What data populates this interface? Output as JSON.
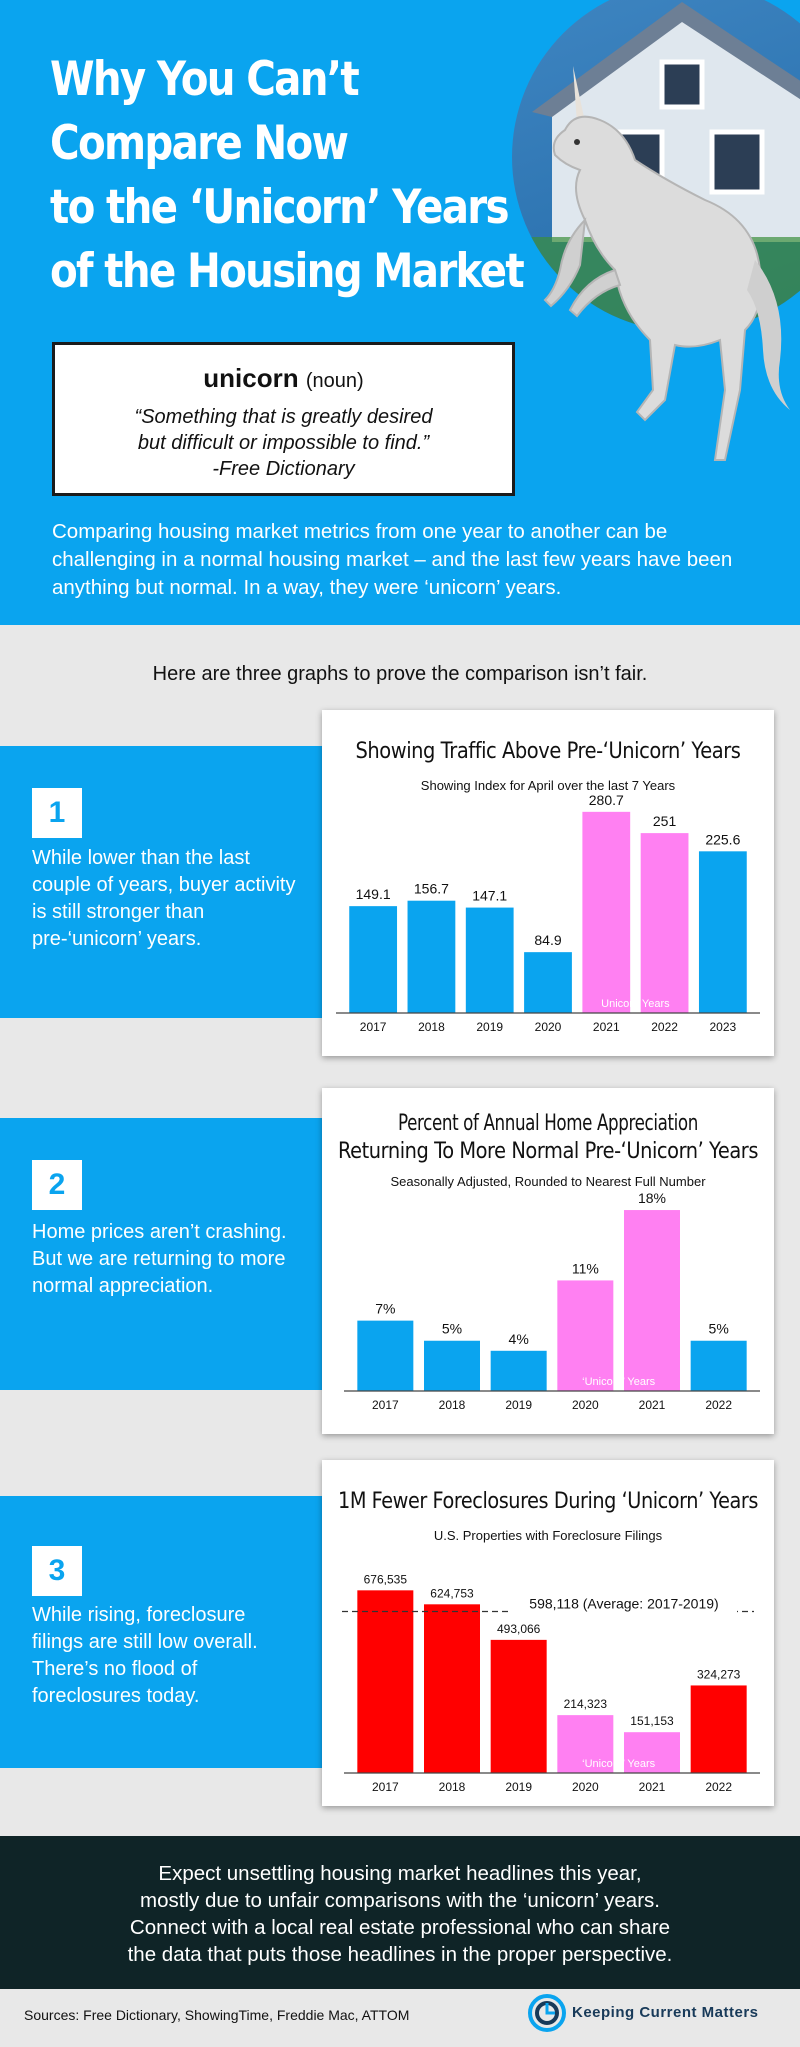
{
  "header": {
    "title_lines": [
      "Why You Can’t",
      "Compare Now",
      "to the ‘Unicorn’ Years",
      "of the Housing Market"
    ],
    "definition": {
      "word": "unicorn",
      "pos": "(noun)",
      "quote_line1": "“Something that is greatly desired",
      "quote_line2": "but difficult or impossible to find.”",
      "source": "-Free Dictionary"
    },
    "intro": "Comparing housing market metrics from one year to another can be challenging in a normal housing market – and the last few years have been anything but normal. In a way, they were ‘unicorn’ years.",
    "colors": {
      "brand_blue": "#0aa4ef",
      "unicorn_pink": "#ff80f2",
      "red": "#ff0000"
    }
  },
  "subintro": "Here are three graphs to prove the comparison isn’t fair.",
  "sections": [
    {
      "number": "1",
      "text": "While lower than the last couple of years, buyer activity is still stronger than pre-‘unicorn’ years."
    },
    {
      "number": "2",
      "text": "Home prices aren’t crashing. But we are returning to more normal appreciation."
    },
    {
      "number": "3",
      "text": "While rising, foreclosure filings are still low overall. There’s no flood of foreclosures today."
    }
  ],
  "chart_data": [
    {
      "type": "bar",
      "title": "Showing Traffic Above Pre-‘Unicorn’ Years",
      "subtitle": "Showing Index for April over the last 7 Years",
      "categories": [
        "2017",
        "2018",
        "2019",
        "2020",
        "2021",
        "2022",
        "2023"
      ],
      "values": [
        149.1,
        156.7,
        147.1,
        84.9,
        280.7,
        251,
        225.6
      ],
      "value_labels": [
        "149.1",
        "156.7",
        "147.1",
        "84.9",
        "280.7",
        "251",
        "225.6"
      ],
      "highlight": [
        4,
        5
      ],
      "highlight_label": "Unicorn Years",
      "ylim": [
        0,
        300
      ],
      "bar_color": "#0aa4ef",
      "highlight_color": "#ff80f2"
    },
    {
      "type": "bar",
      "title": "Percent of Annual Home Appreciation",
      "title_line2": "Returning To More Normal Pre-‘Unicorn’ Years",
      "subtitle": "Seasonally Adjusted, Rounded to Nearest Full Number",
      "categories": [
        "2017",
        "2018",
        "2019",
        "2020",
        "2021",
        "2022"
      ],
      "values": [
        7,
        5,
        4,
        11,
        18,
        5
      ],
      "value_labels": [
        "7%",
        "5%",
        "4%",
        "11%",
        "18%",
        "5%"
      ],
      "highlight": [
        3,
        4
      ],
      "highlight_label": "‘Unicorn’ Years",
      "ylim": [
        0,
        19
      ],
      "bar_color": "#0aa4ef",
      "highlight_color": "#ff80f2"
    },
    {
      "type": "bar",
      "title": "1M Fewer Foreclosures During ‘Unicorn’ Years",
      "subtitle": "U.S. Properties with Foreclosure Filings",
      "categories": [
        "2017",
        "2018",
        "2019",
        "2020",
        "2021",
        "2022"
      ],
      "values": [
        676535,
        624753,
        493066,
        214323,
        151153,
        324273
      ],
      "value_labels": [
        "676,535",
        "624,753",
        "493,066",
        "214,323",
        "151,153",
        "324,273"
      ],
      "highlight": [
        3,
        4
      ],
      "highlight_label": "‘Unicorn’ Years",
      "average": 598118,
      "average_label": "598,118 (Average: 2017-2019)",
      "ylim": [
        0,
        700000
      ],
      "bar_color": "#ff0000",
      "highlight_color": "#ff80f2"
    }
  ],
  "footer": {
    "lines": [
      "Expect unsettling housing market headlines this year,",
      "mostly due to unfair comparisons with the ‘unicorn’ years.",
      "Connect with a local real estate professional who can share",
      "the data that puts those headlines in the proper perspective."
    ]
  },
  "sources": "Sources: Free Dictionary, ShowingTime, Freddie Mac, ATTOM",
  "brand": "Keeping Current Matters"
}
